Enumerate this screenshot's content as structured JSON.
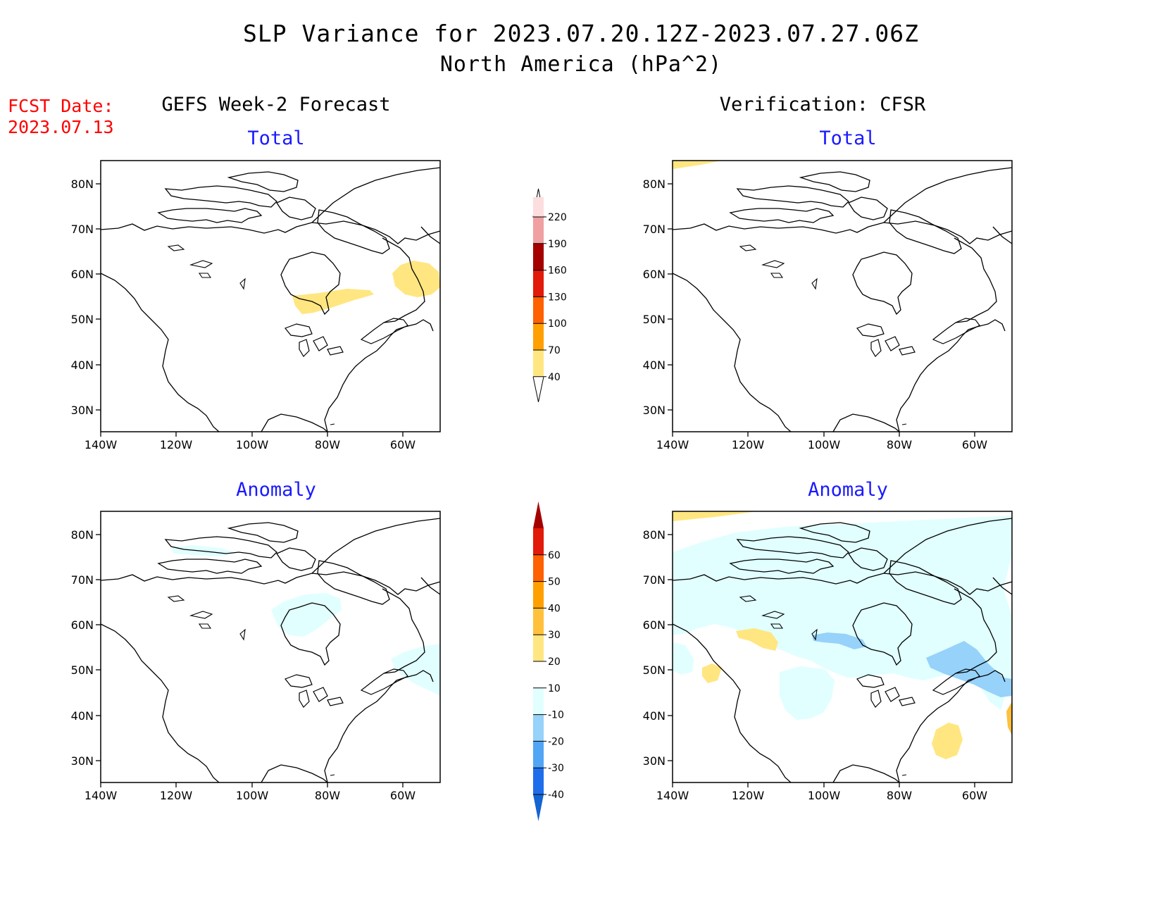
{
  "title": "SLP Variance for 2023.07.20.12Z-2023.07.27.06Z",
  "subtitle": "North America (hPa^2)",
  "fcst_date_label": "FCST Date:",
  "fcst_date": "2023.07.13",
  "left_column_title": "GEFS Week-2 Forecast",
  "right_column_title": "Verification: CFSR",
  "panels": {
    "gefs_total": {
      "title": "Total"
    },
    "gefs_anomaly": {
      "title": "Anomaly"
    },
    "cfsr_total": {
      "title": "Total"
    },
    "cfsr_anomaly": {
      "title": "Anomaly"
    }
  },
  "map_axes": {
    "lat_ticks": [
      "80N",
      "70N",
      "60N",
      "50N",
      "40N",
      "30N"
    ],
    "lon_ticks": [
      "140W",
      "120W",
      "100W",
      "80W",
      "60W"
    ]
  },
  "total_colorbar": {
    "labels": [
      "40",
      "70",
      "100",
      "130",
      "160",
      "190",
      "220"
    ],
    "colors": [
      "#ffe680",
      "#ffa000",
      "#ff6000",
      "#e11a0a",
      "#a50000",
      "#f0a0a0",
      "#fcdede"
    ]
  },
  "anomaly_colorbar": {
    "labels": [
      "-40",
      "-30",
      "-20",
      "-10",
      "10",
      "20",
      "30",
      "40",
      "50",
      "60"
    ],
    "colors": [
      "#1464d2",
      "#1e6eeb",
      "#50a5f5",
      "#96d2fa",
      "#e1ffff",
      "#ffffff",
      "#ffe680",
      "#ffc03c",
      "#ffa000",
      "#ff6000",
      "#e11a0a",
      "#a50000"
    ]
  }
}
